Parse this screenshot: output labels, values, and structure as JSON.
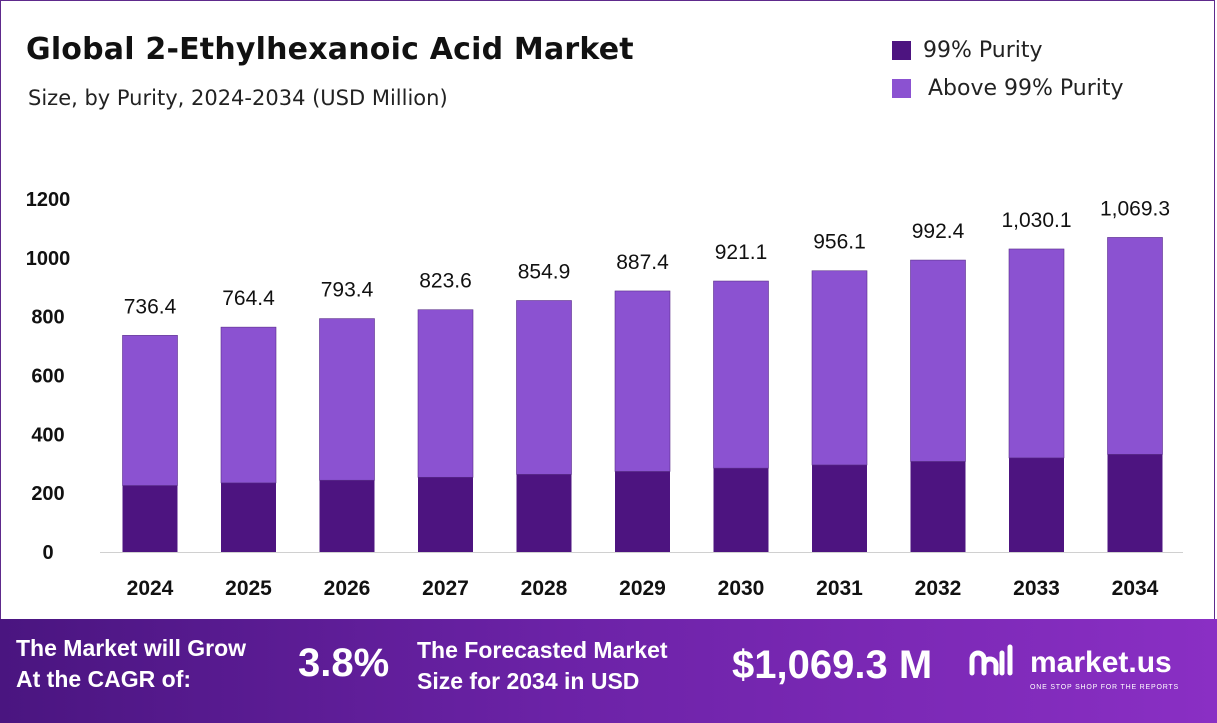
{
  "chart_data": {
    "type": "bar",
    "stacked": true,
    "title": "Global 2-Ethylhexanoic Acid Market",
    "subtitle": "Size, by Purity, 2024-2034 (USD Million)",
    "categories": [
      "2024",
      "2025",
      "2026",
      "2027",
      "2028",
      "2029",
      "2030",
      "2031",
      "2032",
      "2033",
      "2034"
    ],
    "series": [
      {
        "name": "99% Purity",
        "color": "#4d1480",
        "values": [
          226,
          235,
          244,
          254,
          264,
          274,
          285,
          296,
          308,
          320,
          332
        ]
      },
      {
        "name": "Above 99% Purity",
        "color": "#8b52d1",
        "values": [
          510.4,
          529.4,
          549.4,
          569.6,
          590.9,
          613.4,
          636.1,
          660.1,
          684.4,
          710.1,
          737.3
        ]
      }
    ],
    "totals": [
      "736.4",
      "764.4",
      "793.4",
      "823.6",
      "854.9",
      "887.4",
      "921.1",
      "956.1",
      "992.4",
      "1,030.1",
      "1,069.3"
    ],
    "yticks": [
      0,
      200,
      400,
      600,
      800,
      1000,
      1200
    ],
    "ylim": [
      0,
      1200
    ],
    "xlabel": "",
    "ylabel": "",
    "grid": false,
    "legend_position": "top-right"
  },
  "footer": {
    "cagr_text": [
      "The Market will Grow",
      "At the CAGR of:"
    ],
    "cagr_value": "3.8%",
    "forecast_text": [
      "The Forecasted Market",
      "Size for 2034 in USD"
    ],
    "forecast_value": "$1,069.3 M",
    "brand_name": "market.us",
    "brand_tagline": "ONE STOP SHOP FOR THE REPORTS",
    "brand_icon": "market-us-logo-icon"
  }
}
